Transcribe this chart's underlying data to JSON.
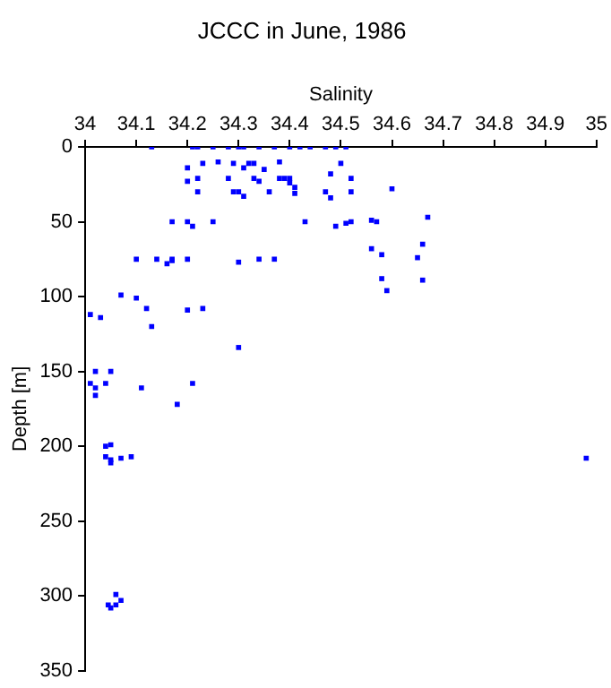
{
  "chart_data": {
    "type": "scatter",
    "title": "JCCC in June, 1986",
    "xlabel": "Salinity",
    "ylabel": "Depth [m]",
    "xlim": [
      34,
      35
    ],
    "xticks": [
      34,
      34.1,
      34.2,
      34.3,
      34.4,
      34.5,
      34.6,
      34.7,
      34.8,
      34.9,
      35
    ],
    "ylim": [
      350,
      0
    ],
    "yticks": [
      0,
      50,
      100,
      150,
      200,
      250,
      300,
      350
    ],
    "grid": false,
    "legend": false,
    "marker": "square",
    "series": [
      {
        "color": "#0000ff",
        "x": [
          34.13,
          34.21,
          34.22,
          34.25,
          34.28,
          34.3,
          34.31,
          34.34,
          34.37,
          34.4,
          34.42,
          34.44,
          34.47,
          34.49,
          34.51,
          34.2,
          34.2,
          34.22,
          34.22,
          34.23,
          34.26,
          34.29,
          34.28,
          34.29,
          34.3,
          34.31,
          34.31,
          34.32,
          34.33,
          34.33,
          34.34,
          34.35,
          34.36,
          34.38,
          34.38,
          34.39,
          34.4,
          34.4,
          34.41,
          34.41,
          34.17,
          34.2,
          34.21,
          34.25,
          34.43,
          34.1,
          34.14,
          34.16,
          34.17,
          34.17,
          34.2,
          34.3,
          34.34,
          34.37,
          34.07,
          34.1,
          34.12,
          34.2,
          34.23,
          34.01,
          34.03,
          34.13,
          34.3,
          34.5,
          34.48,
          34.52,
          34.47,
          34.48,
          34.52,
          34.6,
          34.49,
          34.51,
          34.52,
          34.56,
          34.57,
          34.67,
          34.56,
          34.58,
          34.66,
          34.65,
          34.58,
          34.59,
          34.66,
          34.02,
          34.05,
          34.01,
          34.02,
          34.02,
          34.04,
          34.11,
          34.21,
          34.18,
          34.04,
          34.05,
          34.04,
          34.05,
          34.05,
          34.07,
          34.09,
          34.06,
          34.045,
          34.05,
          34.06,
          34.07,
          34.98
        ],
        "values": [
          0,
          0,
          0,
          0,
          0,
          0,
          0,
          0,
          0,
          0,
          0,
          0,
          0,
          0,
          0,
          14,
          23,
          21,
          30,
          11,
          10,
          11,
          21,
          30,
          30,
          33,
          14,
          11,
          11,
          21,
          23,
          15,
          30,
          10,
          21,
          21,
          21,
          24,
          27,
          31,
          50,
          50,
          53,
          50,
          50,
          75,
          75,
          78,
          76,
          75,
          75,
          77,
          75,
          75,
          99,
          101,
          108,
          109,
          108,
          112,
          114,
          120,
          134,
          11,
          18,
          21,
          30,
          34,
          30,
          28,
          53,
          51,
          50,
          49,
          50,
          47,
          68,
          72,
          65,
          74,
          88,
          96,
          89,
          150,
          150,
          158,
          161,
          166,
          158,
          161,
          158,
          172,
          200,
          199,
          207,
          209,
          211,
          208,
          207,
          299,
          306,
          308,
          306,
          303,
          208
        ]
      }
    ]
  }
}
